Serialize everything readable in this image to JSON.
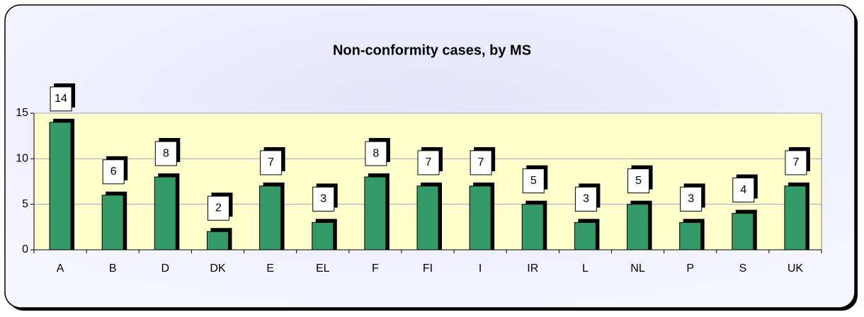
{
  "chart_data": {
    "type": "bar",
    "title": "Non-conformity cases, by MS",
    "categories": [
      "A",
      "B",
      "D",
      "DK",
      "E",
      "EL",
      "F",
      "FI",
      "I",
      "IR",
      "L",
      "NL",
      "P",
      "S",
      "UK"
    ],
    "values": [
      14,
      6,
      8,
      2,
      7,
      3,
      8,
      7,
      7,
      5,
      3,
      5,
      3,
      4,
      7
    ],
    "color": "#339966",
    "ylim": [
      0,
      15
    ],
    "yticks": [
      0,
      5,
      10,
      15
    ],
    "grid": true
  }
}
